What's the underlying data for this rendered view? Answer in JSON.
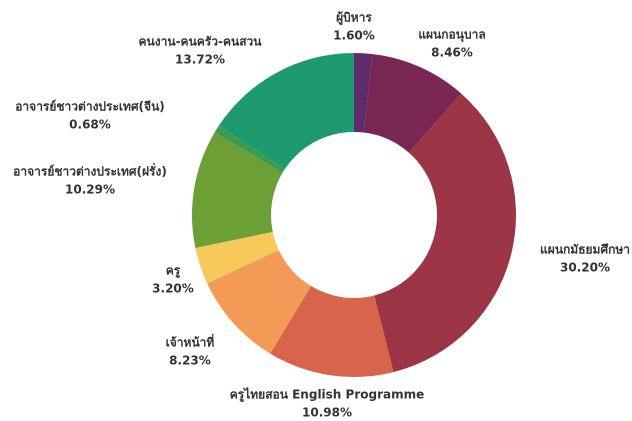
{
  "chart_data": {
    "type": "donut",
    "categories": [
      "ผู้บิหาร",
      "แผนกอนุบาล",
      "แผนกมัธยมศึกษา",
      "ครูไทยสอน English Programme",
      "เจ้าหน้าที่",
      "ครู",
      "อาจารย์ชาวต่างประเทศ(ฝรั่ง)",
      "อาจารย์ชาวต่างประเทศ(จีน)",
      "คนงาน-คนครัว-คนสวน"
    ],
    "values": [
      1.6,
      8.46,
      30.2,
      10.98,
      8.23,
      3.2,
      10.29,
      0.68,
      13.72
    ],
    "value_labels": [
      "1.60%",
      "8.46%",
      "30.20%",
      "10.98%",
      "8.23%",
      "3.20%",
      "10.29%",
      "0.68%",
      "13.72%"
    ],
    "colors": [
      "#5e2b6b",
      "#7a2655",
      "#9c3545",
      "#d8644b",
      "#f29a56",
      "#f7c95b",
      "#6c9f36",
      "#3b9a50",
      "#1e9a6f"
    ]
  }
}
